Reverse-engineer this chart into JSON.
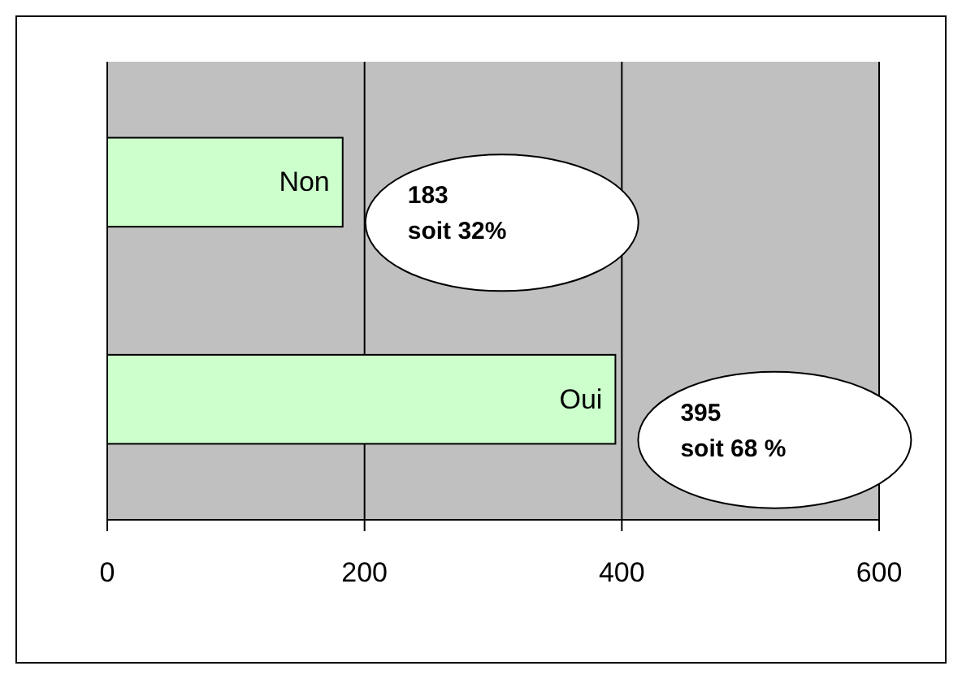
{
  "chart_data": {
    "type": "bar",
    "orientation": "horizontal",
    "categories": [
      "Non",
      "Oui"
    ],
    "values": [
      183,
      395
    ],
    "color": "#ccffcc",
    "xlim": [
      0,
      600
    ],
    "xticks": [
      0,
      200,
      400,
      600
    ],
    "grid": "x",
    "tick_labels": "x",
    "annotations": [
      {
        "text": "183\nsoit 32%",
        "x": 183,
        "y": "Non"
      },
      {
        "text": "395\nsoit 68 %",
        "x": 395,
        "y": "Oui"
      }
    ]
  }
}
